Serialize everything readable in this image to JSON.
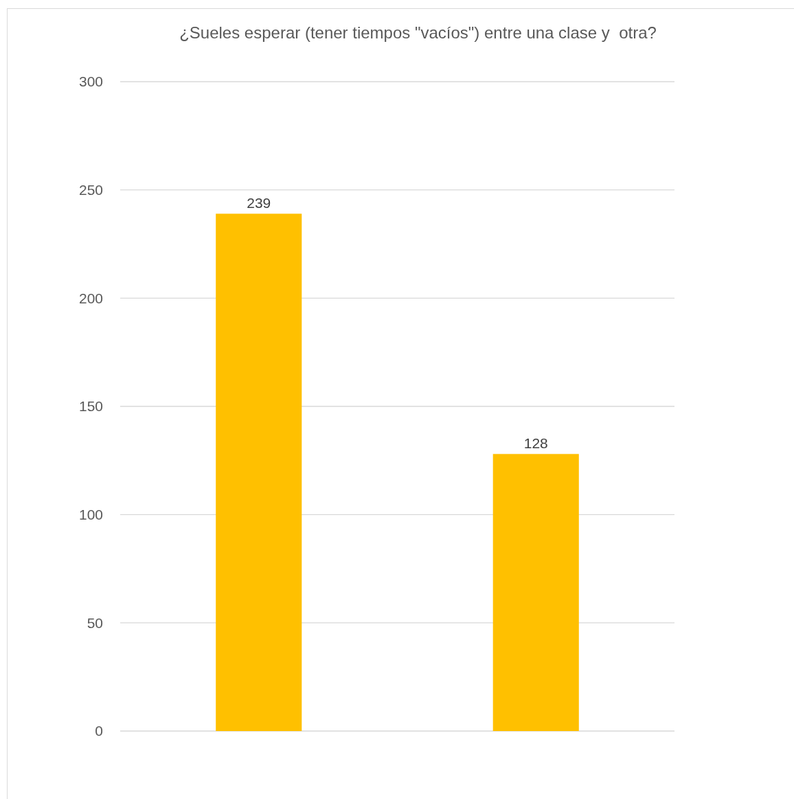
{
  "chart_data": {
    "type": "bar",
    "title": "¿Sueles esperar (tener tiempos \"vacíos\") entre una clase y  otra?",
    "categories": [
      null,
      null
    ],
    "values": [
      239,
      128
    ],
    "color": "#ffc000",
    "ylim": [
      0,
      300
    ],
    "yticks": [
      0,
      50,
      100,
      150,
      200,
      250,
      300
    ],
    "grid": "y",
    "data_labels": true
  }
}
